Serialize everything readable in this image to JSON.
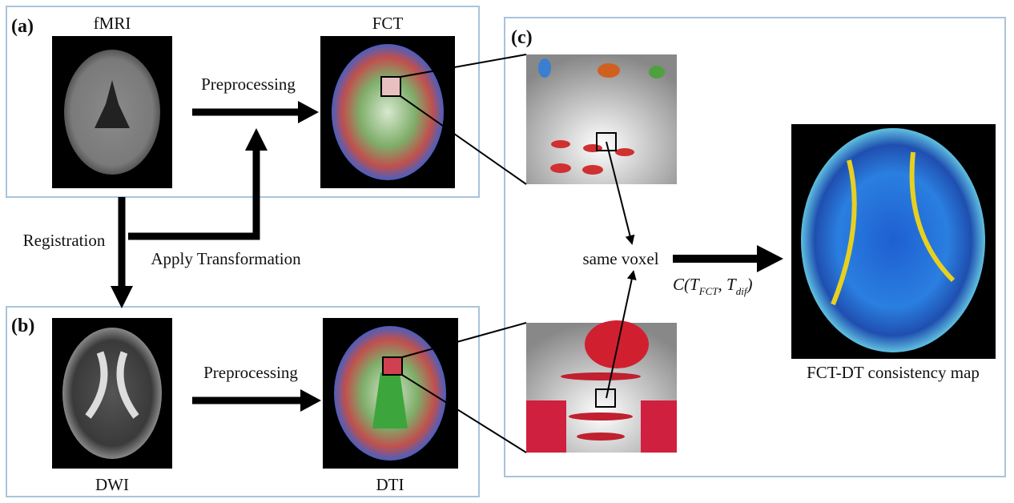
{
  "panels": {
    "a": {
      "label": "(a)",
      "input": "fMRI",
      "output": "FCT",
      "step": "Preprocessing"
    },
    "b": {
      "label": "(b)",
      "input": "DWI",
      "output": "DTI",
      "step": "Preprocessing"
    },
    "c": {
      "label": "(c)",
      "center": "same voxel",
      "formula": [
        "C(T",
        "FCT",
        ", T",
        "dif",
        ")"
      ],
      "result": "FCT-DT consistency map"
    }
  },
  "links": {
    "registration": "Registration",
    "apply": "Apply Transformation"
  }
}
